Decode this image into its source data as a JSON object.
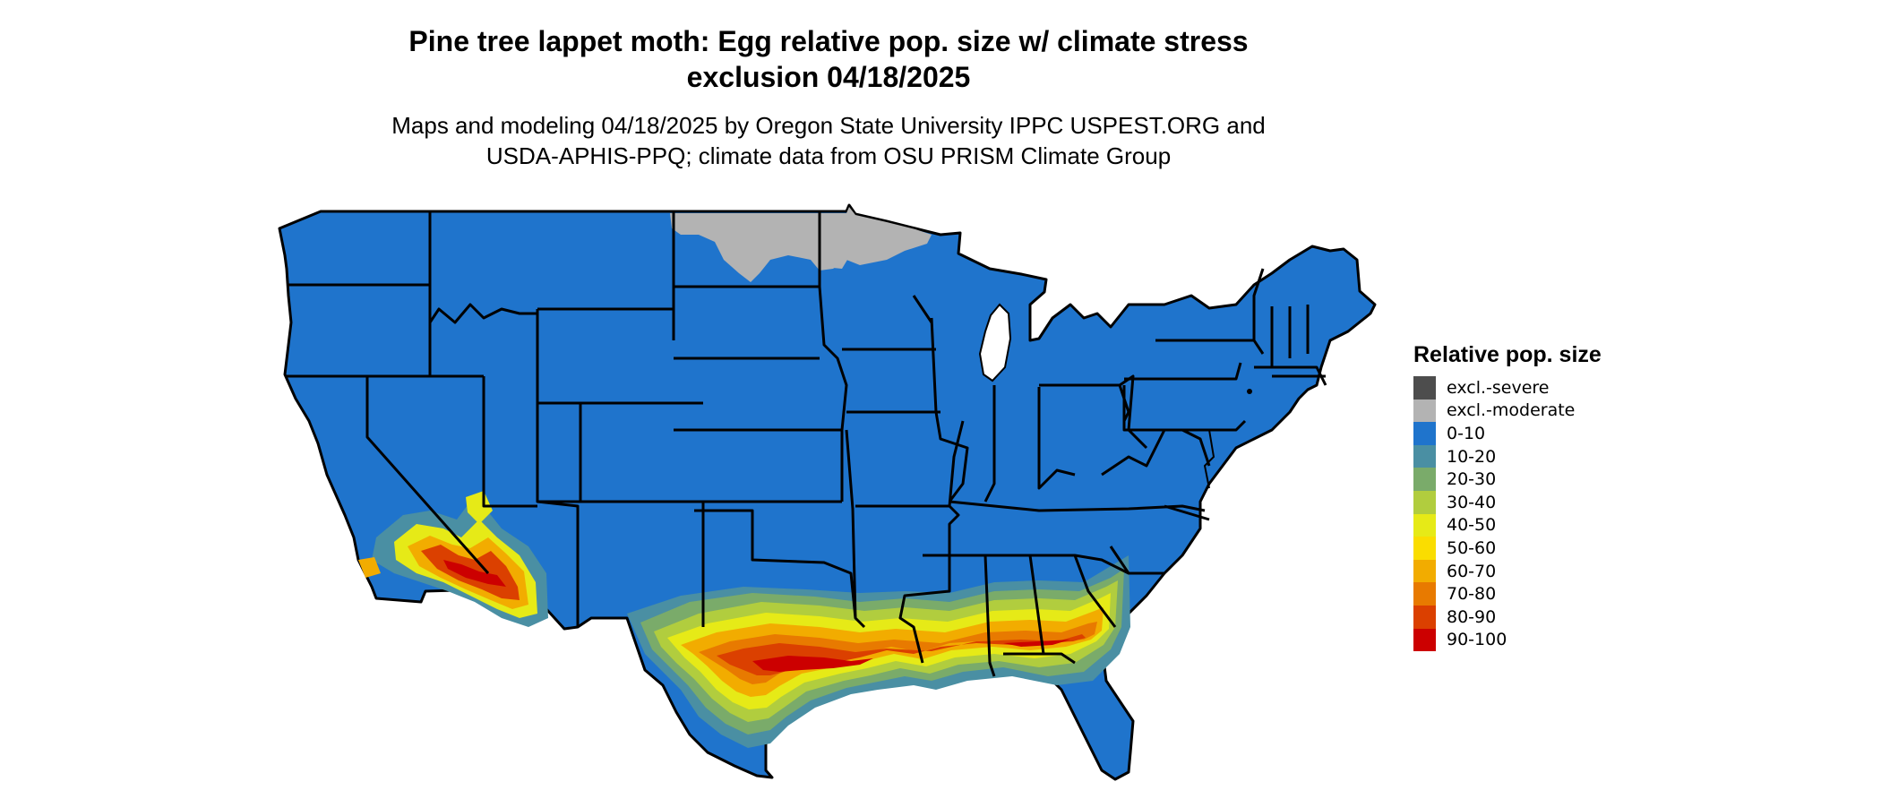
{
  "title": {
    "line1": "Pine tree lappet moth: Egg relative pop. size w/ climate stress",
    "line2": "exclusion 04/18/2025"
  },
  "subtitle": {
    "line1": "Maps and modeling 04/18/2025 by Oregon State University IPPC USPEST.ORG and",
    "line2": "USDA-APHIS-PPQ; climate data from OSU PRISM Climate Group"
  },
  "legend": {
    "title": "Relative pop. size",
    "items": [
      {
        "label": "excl.-severe",
        "color": "#4d4d4d"
      },
      {
        "label": "excl.-moderate",
        "color": "#b3b3b3"
      },
      {
        "label": "0-10",
        "color": "#1f74cc"
      },
      {
        "label": "10-20",
        "color": "#4a8fa3"
      },
      {
        "label": "20-30",
        "color": "#7aab6a"
      },
      {
        "label": "30-40",
        "color": "#b1cd3e"
      },
      {
        "label": "40-50",
        "color": "#e6ea17"
      },
      {
        "label": "50-60",
        "color": "#fadd00"
      },
      {
        "label": "60-70",
        "color": "#f2ac00"
      },
      {
        "label": "70-80",
        "color": "#e87a00"
      },
      {
        "label": "80-90",
        "color": "#db4000"
      },
      {
        "label": "90-100",
        "color": "#cc0000"
      }
    ]
  },
  "map": {
    "region": "Contiguous United States",
    "base_color": "#1f74cc",
    "border_color": "#000000"
  }
}
